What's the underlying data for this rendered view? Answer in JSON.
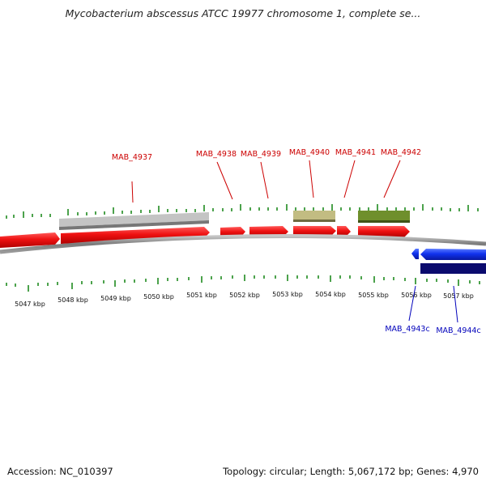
{
  "title": "Mycobacterium abscessus ATCC 19977 chromosome 1, complete se...",
  "footer": {
    "accession": "Accession: NC_010397",
    "summary": "Topology: circular; Length: 5,067,172 bp; Genes: 4,970"
  },
  "colors": {
    "forward_gene": "#ee1111",
    "reverse_gene": "#1133ee",
    "reverse_feature": "#0b0b6e",
    "feature_gray": "#c4c4c4",
    "feature_khaki": "#c2bc82",
    "feature_olive": "#6f8f2c",
    "tick": "#1f8a1f",
    "backbone": "#8a8a8a",
    "forward_label": "#cc0000",
    "reverse_label": "#0000bb"
  },
  "axis_labels": [
    "5047 kbp",
    "5048 kbp",
    "5049 kbp",
    "5050 kbp",
    "5051 kbp",
    "5052 kbp",
    "5053 kbp",
    "5054 kbp",
    "5055 kbp",
    "5056 kbp",
    "5057 kbp"
  ],
  "forward_gene_labels": [
    "MAB_4937",
    "MAB_4938",
    "MAB_4939",
    "MAB_4940",
    "MAB_4941",
    "MAB_4942"
  ],
  "reverse_gene_labels": [
    "MAB_4943c",
    "MAB_4944c"
  ]
}
